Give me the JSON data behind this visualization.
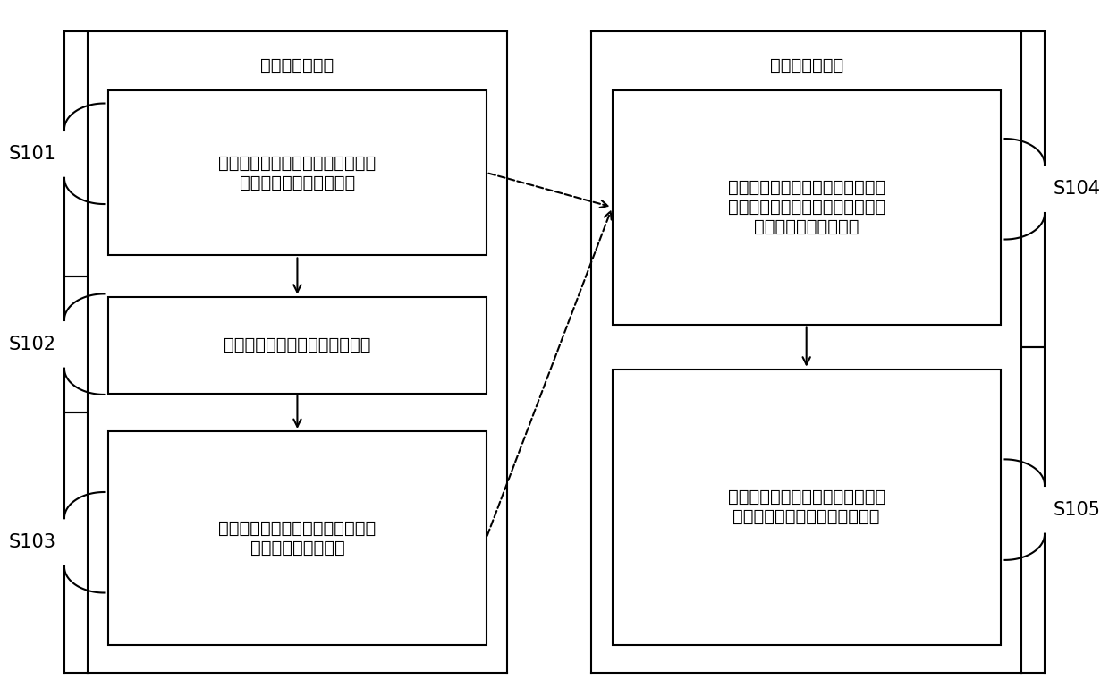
{
  "bg_color": "#ffffff",
  "border_color": "#000000",
  "left_label": "截断式残差设计",
  "right_label": "在线检测与分析",
  "box1_text": "采用升举法将线性离散时滞系统转\n化为线性离散非时滞系统",
  "box2_text": "设计降维观测器并构建传统残差",
  "box3_text": "引入滑动时间窗口，构建截断式残\n差并分析其统计特性",
  "box4_text": "设定显著性水平，计算间歇故障发\n生时刻和消失时刻的检测阈值，与\n标量残差曲线进行比较",
  "box5_text": "在统计特性分析的基础上进行故障\n的幅值估计并分析故障检测性能",
  "font_size_box": 14,
  "font_size_label": 14,
  "font_size_step": 15
}
